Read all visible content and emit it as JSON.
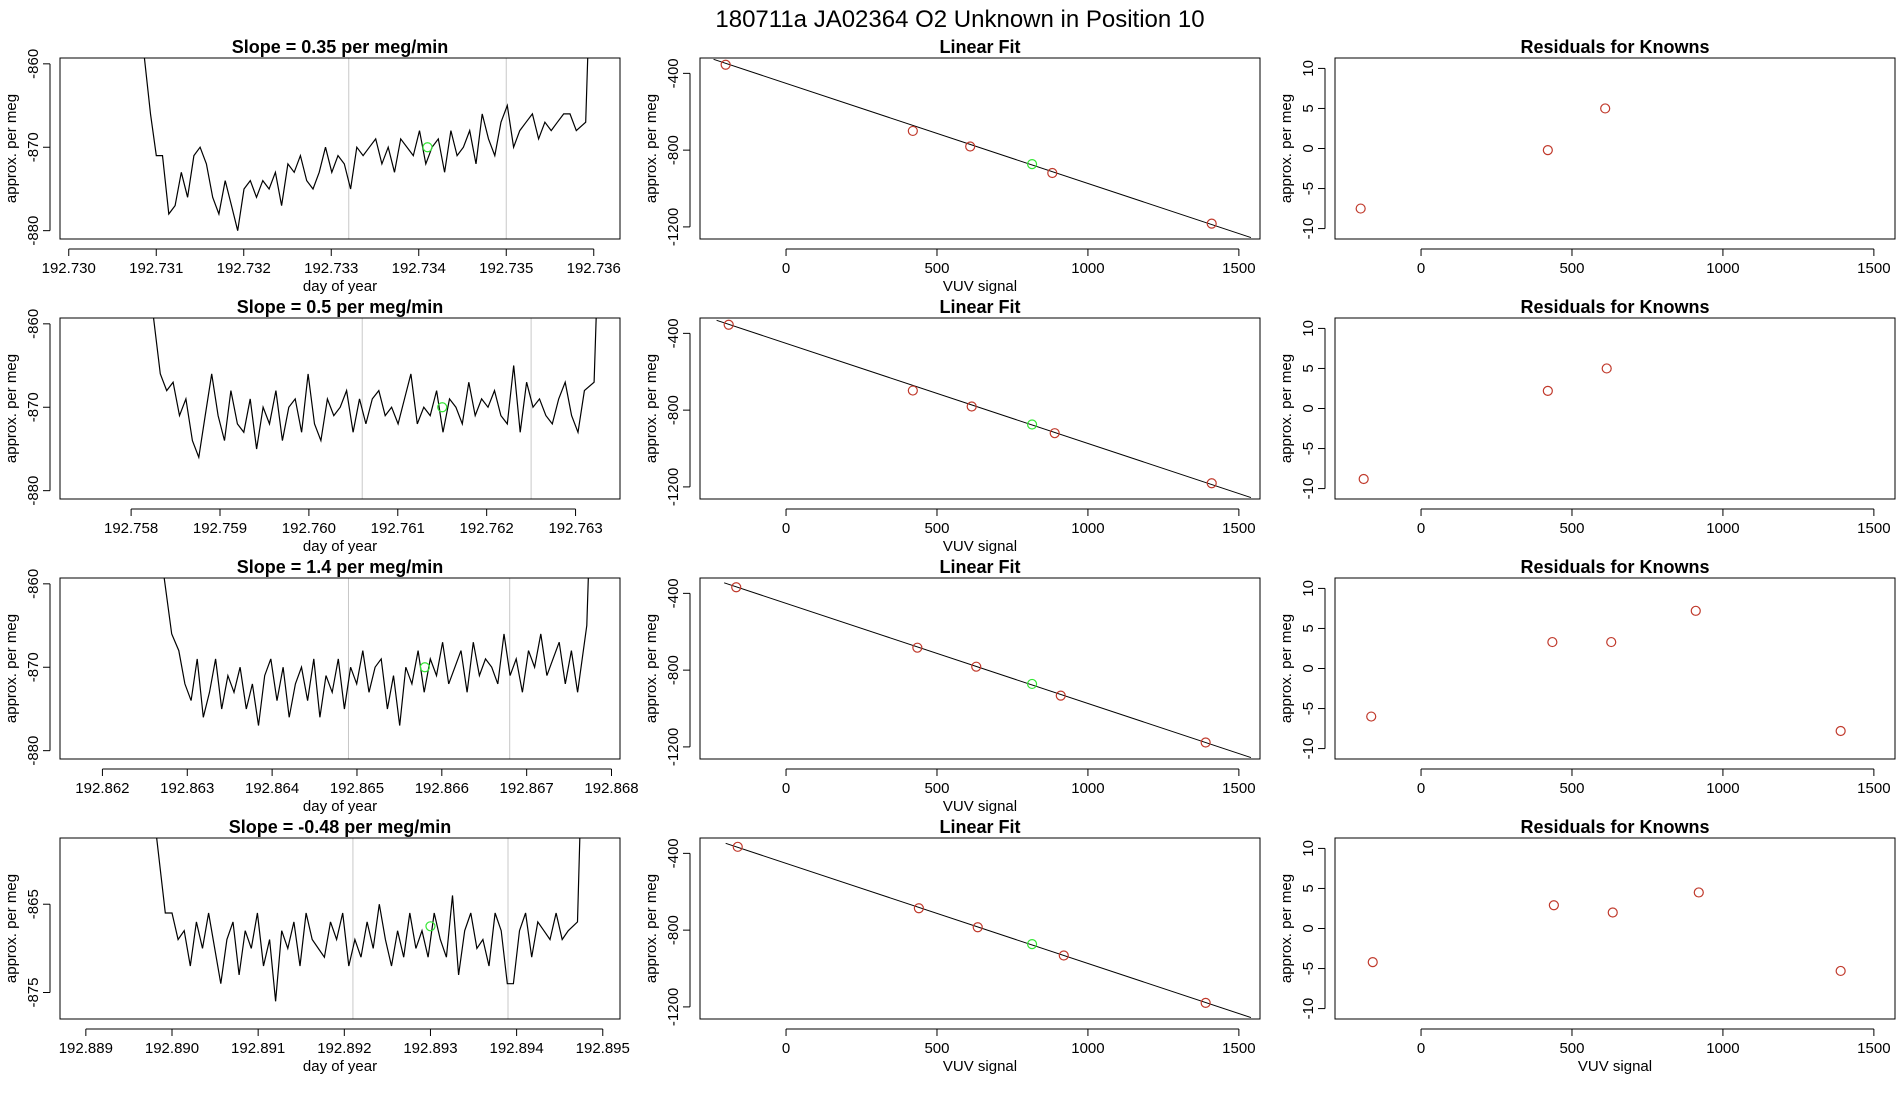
{
  "title": "180711a     JA02364    O2 Unknown in Position  10",
  "colors": {
    "line": "#000000",
    "point": "#c0392b",
    "unknown": "#33e633",
    "marker": "#c8c8c8"
  },
  "chart_data": [
    {
      "type": "line",
      "title": "Slope =  0.35  per meg/min",
      "xlabel": "day of year",
      "ylabel": "approx. per meg",
      "xlim": [
        192.7299,
        192.7363
      ],
      "ylim": [
        -881,
        -859.3
      ],
      "xticks": [
        192.73,
        192.731,
        192.732,
        192.733,
        192.734,
        192.735,
        192.736
      ],
      "xtick_labels": [
        "192.730",
        "192.731",
        "192.732",
        "192.733",
        "192.734",
        "192.735",
        "192.736"
      ],
      "yticks": [
        -860,
        -870,
        -880
      ],
      "ytick_labels": [
        "-860",
        "-870",
        "-880"
      ],
      "markers": [
        192.7332,
        192.735
      ],
      "unknown_point": {
        "x": 192.7341,
        "y": -870
      },
      "trace": {
        "x_start": 192.731,
        "x_end": 192.7358,
        "start_level": -866,
        "end_level": -867,
        "low_level": -875,
        "values": [
          -871,
          -871,
          -878,
          -877,
          -873,
          -876,
          -871,
          -870,
          -872,
          -876,
          -878,
          -874,
          -877,
          -880,
          -875,
          -874,
          -876,
          -874,
          -875,
          -873,
          -877,
          -872,
          -873,
          -871,
          -874,
          -875,
          -873,
          -870,
          -873,
          -871,
          -872,
          -875,
          -870,
          -871,
          -870,
          -869,
          -872,
          -870,
          -873,
          -869,
          -870,
          -871,
          -868,
          -872,
          -870,
          -869,
          -873,
          -868,
          -871,
          -870,
          -868,
          -872,
          -866,
          -869,
          -871,
          -867,
          -865,
          -870,
          -868,
          -867,
          -866,
          -869,
          -867,
          -868,
          -867,
          -866,
          -866,
          -868
        ]
      }
    },
    {
      "type": "scatter",
      "title": "Linear Fit",
      "xlabel": "VUV signal",
      "ylabel": "approx. per meg",
      "xlim": [
        -285,
        1570
      ],
      "ylim": [
        -1263,
        -320
      ],
      "xticks": [
        0,
        500,
        1000,
        1500
      ],
      "xtick_labels": [
        "0",
        "500",
        "1000",
        "1500"
      ],
      "yticks": [
        -400,
        -800,
        -1200
      ],
      "ytick_labels": [
        "-400",
        "-800",
        "-1200"
      ],
      "x": [
        -200,
        420,
        610,
        882,
        1410
      ],
      "y": [
        -355,
        -700,
        -781,
        -919,
        -1183
      ],
      "unknown_point": {
        "x": 815,
        "y": -873
      },
      "fit": {
        "intercept": -452,
        "slope": -0.5217
      }
    },
    {
      "type": "scatter",
      "title": "Residuals for Knowns",
      "xlabel": "",
      "ylabel": "approx. per meg",
      "xlim": [
        -285,
        1570
      ],
      "ylim": [
        -11.3,
        11.3
      ],
      "xticks": [
        0,
        500,
        1000,
        1500
      ],
      "xtick_labels": [
        "0",
        "500",
        "1000",
        "1500"
      ],
      "yticks": [
        10,
        5,
        0,
        -5,
        -10
      ],
      "ytick_labels": [
        "10",
        "5",
        "0",
        "-5",
        "-10"
      ],
      "x": [
        -200,
        420,
        610
      ],
      "y": [
        -7.5,
        -0.2,
        5.0
      ]
    },
    {
      "type": "line",
      "title": "Slope =  0.5  per meg/min",
      "xlabel": "day of year",
      "ylabel": "approx. per meg",
      "xlim": [
        192.7572,
        192.7635
      ],
      "ylim": [
        -881,
        -859.3
      ],
      "xticks": [
        192.758,
        192.759,
        192.76,
        192.761,
        192.762,
        192.763
      ],
      "xtick_labels": [
        "192.758",
        "192.759",
        "192.760",
        "192.761",
        "192.762",
        "192.763"
      ],
      "yticks": [
        -860,
        -870,
        -880
      ],
      "ytick_labels": [
        "-860",
        "-870",
        "-880"
      ],
      "markers": [
        192.7606,
        192.7625
      ],
      "unknown_point": {
        "x": 192.7615,
        "y": -870
      },
      "trace": {
        "x_start": 192.7584,
        "x_end": 192.7631,
        "start_level": -866,
        "end_level": -867,
        "low_level": -876,
        "values": [
          -868,
          -867,
          -871,
          -869,
          -874,
          -876,
          -871,
          -866,
          -871,
          -874,
          -868,
          -872,
          -873,
          -869,
          -875,
          -870,
          -872,
          -868,
          -874,
          -870,
          -869,
          -873,
          -866,
          -872,
          -874,
          -869,
          -871,
          -870,
          -868,
          -873,
          -869,
          -872,
          -869,
          -868,
          -871,
          -870,
          -872,
          -869,
          -866,
          -872,
          -870,
          -871,
          -868,
          -873,
          -869,
          -870,
          -872,
          -867,
          -871,
          -869,
          -870,
          -868,
          -871,
          -872,
          -865,
          -873,
          -867,
          -870,
          -869,
          -871,
          -872,
          -869,
          -867,
          -871,
          -873,
          -868
        ]
      }
    },
    {
      "type": "scatter",
      "title": "Linear Fit",
      "xlabel": "VUV signal",
      "ylabel": "approx. per meg",
      "xlim": [
        -285,
        1570
      ],
      "ylim": [
        -1263,
        -320
      ],
      "xticks": [
        0,
        500,
        1000,
        1500
      ],
      "xtick_labels": [
        "0",
        "500",
        "1000",
        "1500"
      ],
      "yticks": [
        -400,
        -800,
        -1200
      ],
      "ytick_labels": [
        "-400",
        "-800",
        "-1200"
      ],
      "x": [
        -190,
        420,
        615,
        890,
        1410
      ],
      "y": [
        -355,
        -698,
        -781,
        -920,
        -1181
      ],
      "unknown_point": {
        "x": 815,
        "y": -875
      },
      "fit": {
        "intercept": -452,
        "slope": -0.5217
      }
    },
    {
      "type": "scatter",
      "title": "Residuals for Knowns",
      "xlabel": "",
      "ylabel": "approx. per meg",
      "xlim": [
        -285,
        1570
      ],
      "ylim": [
        -11.3,
        11.3
      ],
      "xticks": [
        0,
        500,
        1000,
        1500
      ],
      "xtick_labels": [
        "0",
        "500",
        "1000",
        "1500"
      ],
      "yticks": [
        10,
        5,
        0,
        -5,
        -10
      ],
      "ytick_labels": [
        "10",
        "5",
        "0",
        "-5",
        "-10"
      ],
      "x": [
        -190,
        420,
        615
      ],
      "y": [
        -8.8,
        2.2,
        5.0
      ]
    },
    {
      "type": "line",
      "title": "Slope =  1.4  per meg/min",
      "xlabel": "day of year",
      "ylabel": "approx. per meg",
      "xlim": [
        192.8615,
        192.8681
      ],
      "ylim": [
        -881,
        -859.3
      ],
      "xticks": [
        192.862,
        192.863,
        192.864,
        192.865,
        192.866,
        192.867,
        192.868
      ],
      "xtick_labels": [
        "192.862",
        "192.863",
        "192.864",
        "192.865",
        "192.866",
        "192.867",
        "192.868"
      ],
      "yticks": [
        -860,
        -870,
        -880
      ],
      "ytick_labels": [
        "-860",
        "-870",
        "-880"
      ],
      "markers": [
        192.8649,
        192.8668
      ],
      "unknown_point": {
        "x": 192.8658,
        "y": -870
      },
      "trace": {
        "x_start": 192.8629,
        "x_end": 192.8676,
        "start_level": -866,
        "end_level": -865,
        "low_level": -876,
        "values": [
          -868,
          -872,
          -874,
          -869,
          -876,
          -873,
          -869,
          -875,
          -871,
          -873,
          -870,
          -875,
          -872,
          -877,
          -871,
          -869,
          -874,
          -870,
          -876,
          -872,
          -870,
          -874,
          -869,
          -876,
          -871,
          -873,
          -869,
          -875,
          -870,
          -872,
          -868,
          -873,
          -870,
          -869,
          -875,
          -871,
          -877,
          -870,
          -872,
          -868,
          -873,
          -869,
          -871,
          -867,
          -872,
          -870,
          -868,
          -873,
          -867,
          -871,
          -869,
          -870,
          -872,
          -866,
          -871,
          -869,
          -873,
          -868,
          -870,
          -866,
          -871,
          -869,
          -867,
          -872,
          -868,
          -873
        ]
      }
    },
    {
      "type": "scatter",
      "title": "Linear Fit",
      "xlabel": "VUV signal",
      "ylabel": "approx. per meg",
      "xlim": [
        -285,
        1570
      ],
      "ylim": [
        -1263,
        -320
      ],
      "xticks": [
        0,
        500,
        1000,
        1500
      ],
      "xtick_labels": [
        "0",
        "500",
        "1000",
        "1500"
      ],
      "yticks": [
        -400,
        -800,
        -1200
      ],
      "ytick_labels": [
        "-400",
        "-800",
        "-1200"
      ],
      "x": [
        -165,
        435,
        630,
        910,
        1390
      ],
      "y": [
        -368,
        -683,
        -782,
        -933,
        -1177
      ],
      "unknown_point": {
        "x": 815,
        "y": -872
      },
      "fit": {
        "intercept": -452,
        "slope": -0.5217
      }
    },
    {
      "type": "scatter",
      "title": "Residuals for Knowns",
      "xlabel": "",
      "ylabel": "approx. per meg",
      "xlim": [
        -285,
        1570
      ],
      "ylim": [
        -11.3,
        11.3
      ],
      "xticks": [
        0,
        500,
        1000,
        1500
      ],
      "xtick_labels": [
        "0",
        "500",
        "1000",
        "1500"
      ],
      "yticks": [
        10,
        5,
        0,
        -5,
        -10
      ],
      "ytick_labels": [
        "10",
        "5",
        "0",
        "-5",
        "-10"
      ],
      "x": [
        -165,
        435,
        630,
        910,
        1390
      ],
      "y": [
        -6.0,
        3.3,
        3.3,
        7.2,
        -7.8
      ]
    },
    {
      "type": "line",
      "title": "Slope =  -0.48  per meg/min",
      "xlabel": "day of year",
      "ylabel": "approx. per meg",
      "xlim": [
        192.8887,
        192.8952
      ],
      "ylim": [
        -878,
        -857.5
      ],
      "xticks": [
        192.889,
        192.89,
        192.891,
        192.892,
        192.893,
        192.894,
        192.895
      ],
      "xtick_labels": [
        "192.889",
        "192.890",
        "192.891",
        "192.892",
        "192.893",
        "192.894",
        "192.895"
      ],
      "yticks": [
        -865,
        -875
      ],
      "ytick_labels": [
        "-865",
        "-875"
      ],
      "markers": [
        192.8921,
        192.8939
      ],
      "unknown_point": {
        "x": 192.893,
        "y": -867.5
      },
      "trace": {
        "x_start": 192.89,
        "x_end": 192.8946,
        "start_level": -866,
        "end_level": -867,
        "low_level": -874,
        "values": [
          -866,
          -869,
          -868,
          -872,
          -867,
          -870,
          -866,
          -870,
          -874,
          -869,
          -867,
          -873,
          -868,
          -870,
          -866,
          -872,
          -869,
          -876,
          -868,
          -870,
          -867,
          -872,
          -866,
          -869,
          -870,
          -871,
          -867,
          -869,
          -866,
          -872,
          -869,
          -871,
          -867,
          -870,
          -865,
          -869,
          -872,
          -868,
          -871,
          -866,
          -870,
          -868,
          -871,
          -866,
          -869,
          -871,
          -864,
          -873,
          -868,
          -866,
          -870,
          -869,
          -872,
          -866,
          -868,
          -874,
          -874,
          -868,
          -866,
          -871,
          -867,
          -868,
          -869,
          -866,
          -869,
          -868
        ]
      }
    },
    {
      "type": "scatter",
      "title": "Linear Fit",
      "xlabel": "VUV signal",
      "ylabel": "approx. per meg",
      "xlim": [
        -285,
        1570
      ],
      "ylim": [
        -1263,
        -320
      ],
      "xticks": [
        0,
        500,
        1000,
        1500
      ],
      "xtick_labels": [
        "0",
        "500",
        "1000",
        "1500"
      ],
      "yticks": [
        -400,
        -800,
        -1200
      ],
      "ytick_labels": [
        "-400",
        "-800",
        "-1200"
      ],
      "x": [
        -160,
        440,
        635,
        920,
        1390
      ],
      "y": [
        -366,
        -686,
        -785,
        -932,
        -1179
      ],
      "unknown_point": {
        "x": 815,
        "y": -873
      },
      "fit": {
        "intercept": -452,
        "slope": -0.5217
      }
    },
    {
      "type": "scatter",
      "title": "Residuals for Knowns",
      "xlabel": "VUV signal",
      "ylabel": "approx. per meg",
      "xlim": [
        -285,
        1570
      ],
      "ylim": [
        -11.3,
        11.3
      ],
      "xticks": [
        0,
        500,
        1000,
        1500
      ],
      "xtick_labels": [
        "0",
        "500",
        "1000",
        "1500"
      ],
      "yticks": [
        10,
        5,
        0,
        -5,
        -10
      ],
      "ytick_labels": [
        "10",
        "5",
        "0",
        "-5",
        "-10"
      ],
      "x": [
        -160,
        440,
        635,
        920,
        1390
      ],
      "y": [
        -4.2,
        2.9,
        2.0,
        4.5,
        -5.3
      ]
    }
  ]
}
